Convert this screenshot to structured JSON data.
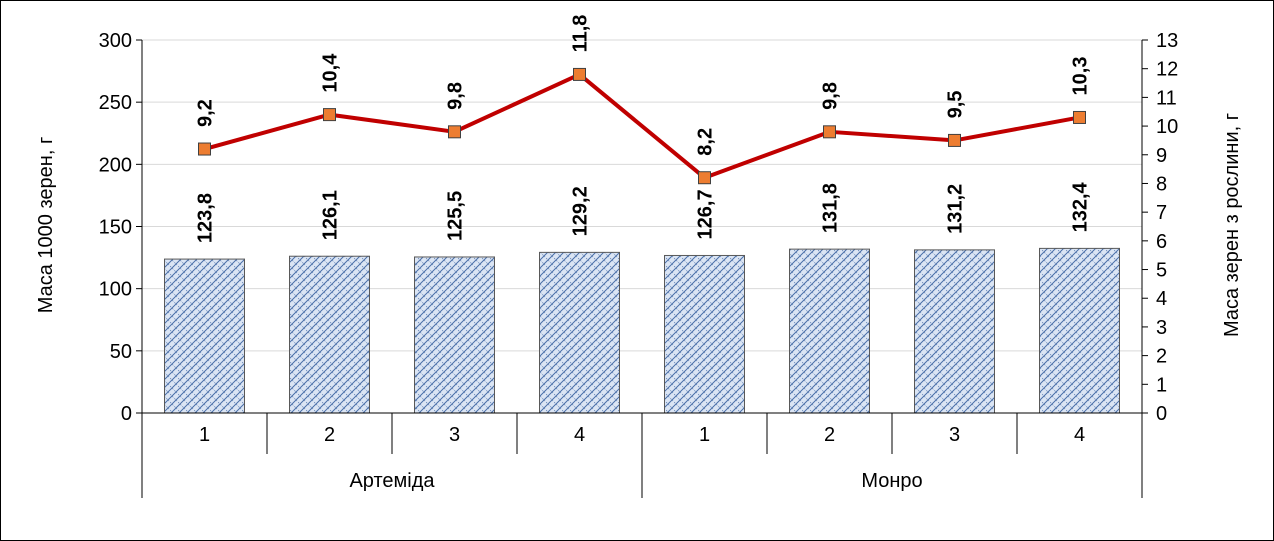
{
  "chart_data": {
    "type": "bar",
    "groups": [
      {
        "name": "Артеміда",
        "categories": [
          "1",
          "2",
          "3",
          "4"
        ]
      },
      {
        "name": "Монро",
        "categories": [
          "1",
          "2",
          "3",
          "4"
        ]
      }
    ],
    "series": [
      {
        "values": [
          123.8,
          126.1,
          125.5,
          129.2,
          126.7,
          131.8,
          131.2,
          132.4
        ],
        "labels": [
          "123,8",
          "126,1",
          "125,5",
          "129,2",
          "126,7",
          "131,8",
          "131,2",
          "132,4"
        ],
        "chart": "bar",
        "axis": "left",
        "color": "#dbe5f4",
        "pattern_color": "#4a6fa8"
      },
      {
        "values": [
          9.2,
          10.4,
          9.8,
          11.8,
          8.2,
          9.8,
          9.5,
          10.3
        ],
        "labels": [
          "9,2",
          "10,4",
          "9,8",
          "11,8",
          "8,2",
          "9,8",
          "9,5",
          "10,3"
        ],
        "chart": "line",
        "axis": "right",
        "color": "#c00000",
        "marker_color": "#ed7d31"
      }
    ],
    "ylabel": "Маса 1000 зерен, г",
    "y2label": "Маса зерен з рослини, г",
    "ylim": [
      0,
      300
    ],
    "y2lim": [
      0,
      13
    ],
    "yticks": [
      "0",
      "50",
      "100",
      "150",
      "200",
      "250",
      "300"
    ],
    "y2ticks": [
      "0",
      "1",
      "2",
      "3",
      "4",
      "5",
      "6",
      "7",
      "8",
      "9",
      "10",
      "11",
      "12",
      "13"
    ],
    "grid": true
  }
}
